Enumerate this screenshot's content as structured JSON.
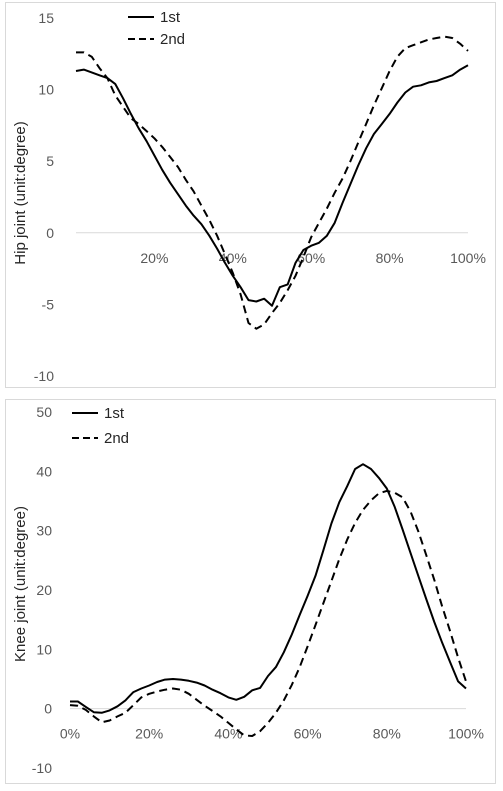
{
  "chart_data": [
    {
      "type": "line",
      "ylabel": "Hip joint  (unit:degree)",
      "xlabel": "",
      "ylim": [
        -10,
        15
      ],
      "xlim": [
        0,
        100
      ],
      "y_ticks": [
        -10,
        -5,
        0,
        5,
        10,
        15
      ],
      "y_tick_labels": [
        "-10",
        "-5",
        "0",
        "5",
        "10",
        "15"
      ],
      "x_ticks": [
        20,
        40,
        60,
        80,
        100
      ],
      "x_tick_labels": [
        "20%",
        "40%",
        "60%",
        "80%",
        "100%"
      ],
      "legend_position": "top-left",
      "grid": false,
      "series": [
        {
          "name": "1st",
          "dash": "solid",
          "color": "#000000",
          "x": [
            0,
            2,
            4,
            6,
            8,
            10,
            12,
            14,
            16,
            18,
            20,
            22,
            24,
            26,
            28,
            30,
            32,
            34,
            36,
            38,
            40,
            42,
            44,
            46,
            48,
            50,
            52,
            54,
            56,
            58,
            60,
            62,
            64,
            66,
            68,
            70,
            72,
            74,
            76,
            78,
            80,
            82,
            84,
            86,
            88,
            90,
            92,
            94,
            96,
            98,
            100
          ],
          "values": [
            11.3,
            11.4,
            11.2,
            11.0,
            10.8,
            10.4,
            9.4,
            8.3,
            7.3,
            6.4,
            5.4,
            4.4,
            3.5,
            2.7,
            1.9,
            1.2,
            0.6,
            -0.2,
            -1.1,
            -2.1,
            -3.0,
            -3.8,
            -4.7,
            -4.8,
            -4.6,
            -5.1,
            -3.8,
            -3.6,
            -2.1,
            -1.2,
            -0.9,
            -0.7,
            -0.2,
            0.7,
            2.1,
            3.4,
            4.7,
            5.9,
            6.9,
            7.6,
            8.3,
            9.1,
            9.8,
            10.2,
            10.3,
            10.5,
            10.6,
            10.8,
            11.0,
            11.4,
            11.7
          ]
        },
        {
          "name": "2nd",
          "dash": "dashed",
          "color": "#000000",
          "x": [
            0,
            2,
            4,
            6,
            8,
            10,
            12,
            14,
            16,
            18,
            20,
            22,
            24,
            26,
            28,
            30,
            32,
            34,
            36,
            38,
            40,
            42,
            44,
            46,
            48,
            50,
            52,
            54,
            56,
            58,
            60,
            62,
            64,
            66,
            68,
            70,
            72,
            74,
            76,
            78,
            80,
            82,
            84,
            86,
            88,
            90,
            92,
            94,
            96,
            98,
            100
          ],
          "values": [
            12.6,
            12.6,
            12.3,
            11.5,
            10.8,
            9.6,
            8.8,
            8.0,
            7.6,
            7.1,
            6.6,
            6.0,
            5.3,
            4.6,
            3.7,
            2.9,
            1.9,
            0.9,
            -0.2,
            -1.5,
            -2.8,
            -4.3,
            -6.3,
            -6.7,
            -6.4,
            -5.6,
            -4.9,
            -4.0,
            -3.0,
            -1.7,
            -0.3,
            0.7,
            1.7,
            2.8,
            3.8,
            5.0,
            6.3,
            7.6,
            8.9,
            10.1,
            11.3,
            12.3,
            12.9,
            13.1,
            13.3,
            13.5,
            13.6,
            13.7,
            13.6,
            13.2,
            12.7
          ]
        }
      ]
    },
    {
      "type": "line",
      "ylabel": "Knee joint  (unit:degree)",
      "xlabel": "",
      "ylim": [
        -10,
        50
      ],
      "xlim": [
        0,
        100
      ],
      "y_ticks": [
        -10,
        0,
        10,
        20,
        30,
        40,
        50
      ],
      "y_tick_labels": [
        "-10",
        "0",
        "10",
        "20",
        "30",
        "40",
        "50"
      ],
      "x_ticks": [
        0,
        20,
        40,
        60,
        80,
        100
      ],
      "x_tick_labels": [
        "0%",
        "20%",
        "40%",
        "60%",
        "80%",
        "100%"
      ],
      "legend_position": "top-left",
      "grid": false,
      "series": [
        {
          "name": "1st",
          "dash": "solid",
          "color": "#000000",
          "x": [
            0,
            2,
            4,
            6,
            8,
            10,
            12,
            14,
            16,
            18,
            20,
            22,
            24,
            26,
            28,
            30,
            32,
            34,
            36,
            38,
            40,
            42,
            44,
            46,
            48,
            50,
            52,
            54,
            56,
            58,
            60,
            62,
            64,
            66,
            68,
            70,
            72,
            74,
            76,
            78,
            80,
            82,
            84,
            86,
            88,
            90,
            92,
            94,
            96,
            98,
            100
          ],
          "values": [
            1.2,
            1.2,
            0.3,
            -0.6,
            -0.7,
            -0.3,
            0.4,
            1.4,
            2.8,
            3.4,
            3.9,
            4.5,
            4.9,
            5.0,
            4.9,
            4.7,
            4.4,
            3.9,
            3.2,
            2.6,
            1.9,
            1.5,
            2.0,
            3.1,
            3.5,
            5.5,
            7.0,
            9.5,
            12.5,
            15.8,
            19.0,
            22.4,
            26.7,
            31.2,
            34.8,
            37.5,
            40.4,
            41.2,
            40.4,
            38.9,
            37.1,
            34.0,
            30.2,
            26.2,
            22.3,
            18.4,
            14.6,
            11.1,
            7.8,
            4.6,
            3.4
          ]
        },
        {
          "name": "2nd",
          "dash": "dashed",
          "color": "#000000",
          "x": [
            0,
            2,
            4,
            6,
            8,
            10,
            12,
            14,
            16,
            18,
            20,
            22,
            24,
            26,
            28,
            30,
            32,
            34,
            36,
            38,
            40,
            42,
            44,
            46,
            48,
            50,
            52,
            54,
            56,
            58,
            60,
            62,
            64,
            66,
            68,
            70,
            72,
            74,
            76,
            78,
            80,
            82,
            84,
            86,
            88,
            90,
            92,
            94,
            96,
            98,
            100
          ],
          "values": [
            0.6,
            0.5,
            -0.2,
            -1.3,
            -2.3,
            -2.0,
            -1.3,
            -0.7,
            0.6,
            1.9,
            2.5,
            2.9,
            3.2,
            3.4,
            3.2,
            2.5,
            1.5,
            0.5,
            -0.4,
            -1.3,
            -2.4,
            -3.5,
            -4.5,
            -4.6,
            -3.8,
            -2.4,
            -0.7,
            1.4,
            4.0,
            7.0,
            10.5,
            14.1,
            17.8,
            21.5,
            25.2,
            28.5,
            31.3,
            33.5,
            35.1,
            36.3,
            36.7,
            36.4,
            35.6,
            33.2,
            29.8,
            25.8,
            21.7,
            17.2,
            13.0,
            8.6,
            4.6
          ]
        }
      ]
    }
  ]
}
